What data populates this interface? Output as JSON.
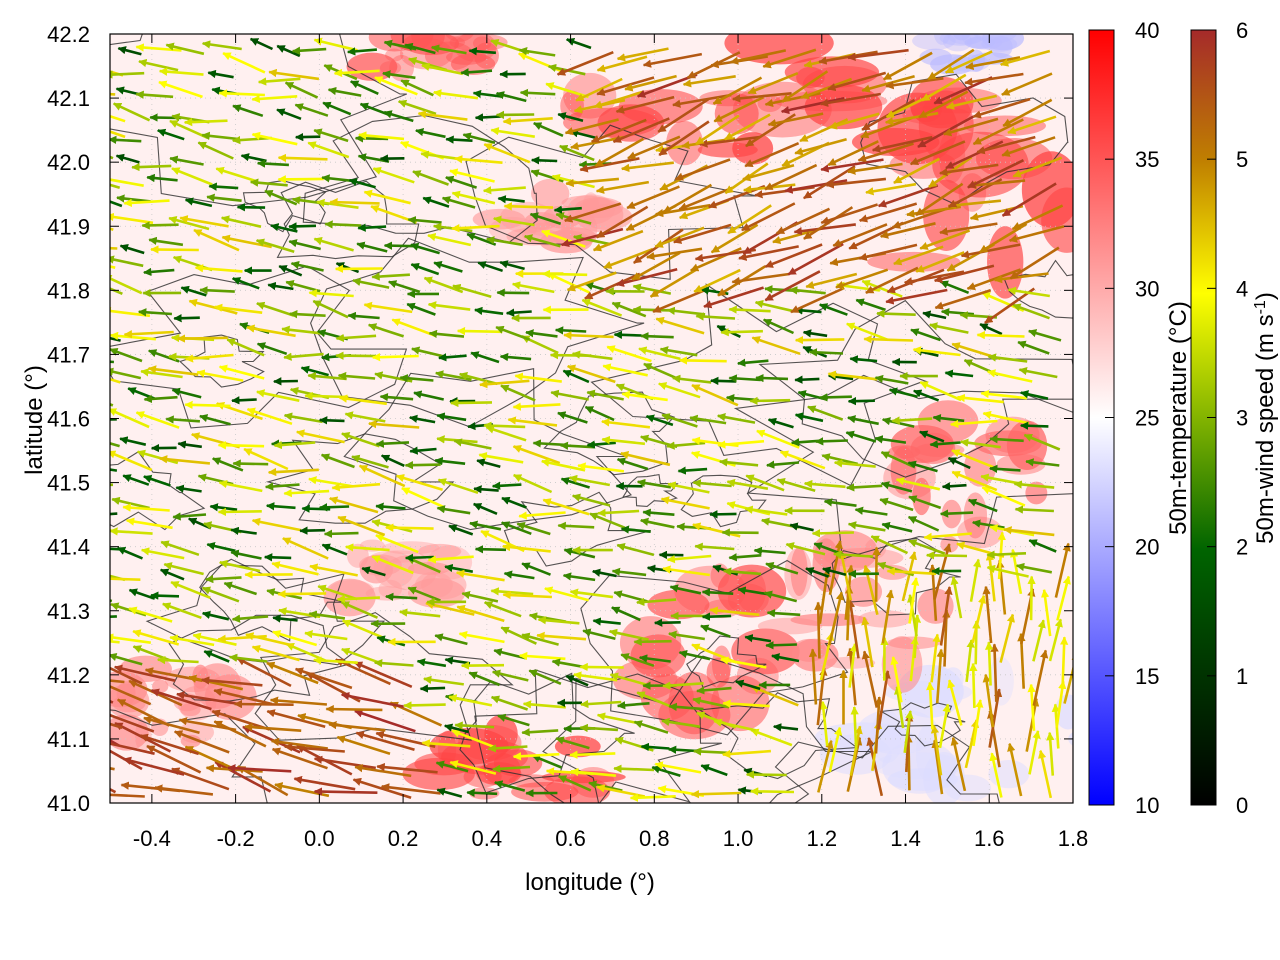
{
  "chart_data": {
    "type": "heatmap",
    "title": "",
    "xlabel": "longitude (°)",
    "ylabel": "latitude (°)",
    "xlim": [
      -0.5,
      1.8
    ],
    "ylim": [
      41.0,
      42.2
    ],
    "x_ticks": [
      "-0.4",
      "-0.2",
      "0.0",
      "0.2",
      "0.4",
      "0.6",
      "0.8",
      "1.0",
      "1.2",
      "1.4",
      "1.6",
      "1.8"
    ],
    "y_ticks": [
      "41.0",
      "41.1",
      "41.2",
      "41.3",
      "41.4",
      "41.5",
      "41.6",
      "41.7",
      "41.8",
      "41.9",
      "42.0",
      "42.1",
      "42.2"
    ],
    "grid": true,
    "layers": [
      "50m-temperature color field",
      "terrain contour lines",
      "50m-wind vectors colored by speed"
    ],
    "temperature_colorbar": {
      "label": "50m-temperature (°C)",
      "range": [
        10,
        40
      ],
      "ticks": [
        "10",
        "15",
        "20",
        "25",
        "30",
        "35",
        "40"
      ],
      "colors": [
        "#0000ff",
        "#ffffff",
        "#ff0000"
      ]
    },
    "wind_colorbar": {
      "label": "50m-wind speed (m s-1)",
      "label_prefix": "50m-wind speed (m s",
      "label_sup": "-1",
      "label_suffix": ")",
      "range": [
        0,
        6
      ],
      "ticks": [
        "0",
        "1",
        "2",
        "3",
        "4",
        "5",
        "6"
      ],
      "colors": [
        "#000000",
        "#006400",
        "#ffff00",
        "#c08000",
        "#a52a2a"
      ]
    },
    "hot_regions": [
      {
        "lon": 0.95,
        "lat": 42.1,
        "rlon": 0.35,
        "rlat": 0.1,
        "temp": 36
      },
      {
        "lon": 1.55,
        "lat": 41.95,
        "rlon": 0.3,
        "rlat": 0.15,
        "temp": 36
      },
      {
        "lon": 0.25,
        "lat": 42.17,
        "rlon": 0.15,
        "rlat": 0.05,
        "temp": 35
      },
      {
        "lon": 0.9,
        "lat": 41.25,
        "rlon": 0.22,
        "rlat": 0.12,
        "temp": 35
      },
      {
        "lon": 1.55,
        "lat": 41.5,
        "rlon": 0.18,
        "rlat": 0.1,
        "temp": 34
      },
      {
        "lon": 1.3,
        "lat": 41.3,
        "rlon": 0.25,
        "rlat": 0.1,
        "temp": 32
      },
      {
        "lon": 0.45,
        "lat": 41.05,
        "rlon": 0.25,
        "rlat": 0.06,
        "temp": 36
      },
      {
        "lon": -0.35,
        "lat": 41.15,
        "rlon": 0.15,
        "rlat": 0.08,
        "temp": 32
      },
      {
        "lon": 0.2,
        "lat": 41.35,
        "rlon": 0.15,
        "rlat": 0.06,
        "temp": 31
      },
      {
        "lon": 0.55,
        "lat": 41.9,
        "rlon": 0.15,
        "rlat": 0.06,
        "temp": 31
      }
    ],
    "cool_regions": [
      {
        "lon": 1.55,
        "lat": 41.1,
        "rlon": 0.3,
        "rlat": 0.1,
        "temp": 23
      },
      {
        "lon": 1.55,
        "lat": 42.18,
        "rlon": 0.1,
        "rlat": 0.03,
        "temp": 21
      }
    ],
    "wind_regimes": [
      {
        "region": "west and central",
        "direction_deg": 170,
        "speed_range": [
          1.5,
          4.5
        ]
      },
      {
        "region": "north-east",
        "direction_deg": 200,
        "speed_range": [
          4.5,
          6
        ]
      },
      {
        "region": "south-west",
        "direction_deg": 165,
        "speed_range": [
          5,
          6
        ]
      },
      {
        "region": "south-east",
        "direction_deg": 90,
        "speed_range": [
          3.5,
          5.5
        ]
      }
    ]
  }
}
